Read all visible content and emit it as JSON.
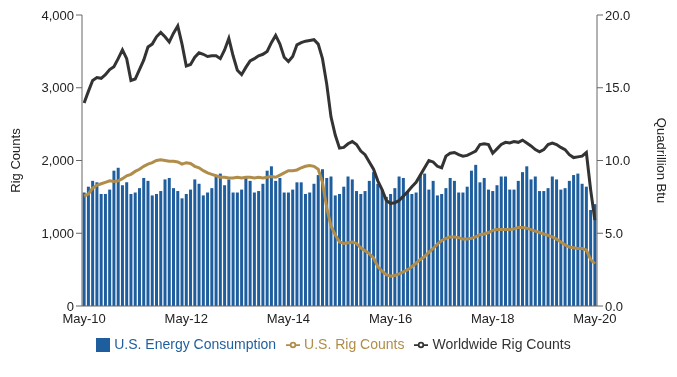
{
  "chart_data": {
    "type": "bar",
    "y_label": "Rig Counts",
    "y2_label": "Quadrillion Btu",
    "legend": "bottom",
    "grid": false,
    "categories": [
      "May-10",
      null,
      null,
      null,
      null,
      null,
      null,
      null,
      null,
      null,
      null,
      null,
      null,
      null,
      null,
      null,
      null,
      null,
      null,
      null,
      null,
      null,
      null,
      null,
      "May-12",
      null,
      null,
      null,
      null,
      null,
      null,
      null,
      null,
      null,
      null,
      null,
      null,
      null,
      null,
      null,
      null,
      null,
      null,
      null,
      null,
      null,
      null,
      null,
      "May-14",
      null,
      null,
      null,
      null,
      null,
      null,
      null,
      null,
      null,
      null,
      null,
      null,
      null,
      null,
      null,
      null,
      null,
      null,
      null,
      null,
      null,
      null,
      null,
      "May-16",
      null,
      null,
      null,
      null,
      null,
      null,
      null,
      null,
      null,
      null,
      null,
      null,
      null,
      null,
      null,
      null,
      null,
      null,
      null,
      null,
      null,
      null,
      null,
      "May-18",
      null,
      null,
      null,
      null,
      null,
      null,
      null,
      null,
      null,
      null,
      null,
      null,
      null,
      null,
      null,
      null,
      null,
      null,
      null,
      null,
      null,
      null,
      null,
      "May-20"
    ],
    "ylim": [
      0,
      4000
    ],
    "yticks": [
      {
        "value": 0,
        "label": "0"
      },
      {
        "value": 1000,
        "label": "1,000"
      },
      {
        "value": 2000,
        "label": "2,000"
      },
      {
        "value": 3000,
        "label": "3,000"
      },
      {
        "value": 4000,
        "label": "4,000"
      }
    ],
    "y2lim": [
      0,
      20
    ],
    "y2ticks": [
      {
        "value": 0,
        "label": "0.0"
      },
      {
        "value": 5,
        "label": "5.0"
      },
      {
        "value": 10,
        "label": "10.0"
      },
      {
        "value": 15,
        "label": "15.0"
      },
      {
        "value": 20,
        "label": "20.0"
      }
    ],
    "series": [
      {
        "name": "U.S. Energy Consumption",
        "type": "bar",
        "axis": "y2",
        "color": "#1f5e9e",
        "values": [
          7.8,
          8.2,
          8.6,
          8.5,
          7.7,
          7.7,
          8.0,
          9.3,
          9.5,
          8.3,
          8.5,
          7.7,
          7.8,
          8.1,
          8.8,
          8.6,
          7.6,
          7.7,
          7.9,
          8.7,
          8.8,
          8.1,
          7.9,
          7.4,
          7.7,
          8.0,
          8.7,
          8.4,
          7.6,
          7.8,
          8.1,
          8.9,
          9.1,
          8.3,
          8.7,
          7.8,
          7.8,
          8.0,
          8.8,
          8.6,
          7.8,
          7.9,
          8.4,
          9.3,
          9.6,
          8.6,
          8.8,
          7.8,
          7.8,
          8.0,
          8.5,
          8.5,
          7.7,
          7.8,
          8.4,
          9.0,
          9.4,
          8.8,
          8.9,
          7.6,
          7.7,
          8.2,
          8.9,
          8.7,
          7.9,
          7.7,
          7.9,
          8.6,
          9.2,
          8.4,
          8.0,
          7.5,
          7.7,
          8.1,
          8.9,
          8.8,
          7.9,
          7.7,
          7.8,
          9.0,
          9.1,
          8.0,
          8.6,
          7.6,
          7.7,
          8.1,
          8.8,
          8.6,
          7.8,
          7.8,
          8.2,
          9.3,
          9.7,
          8.5,
          8.8,
          8.0,
          7.9,
          8.3,
          8.9,
          8.9,
          8.0,
          8.0,
          8.6,
          9.2,
          9.6,
          8.7,
          8.9,
          7.9,
          7.9,
          8.1,
          8.9,
          8.7,
          8.0,
          8.1,
          8.6,
          9.0,
          9.1,
          8.4,
          8.2,
          6.6,
          7.0
        ]
      },
      {
        "name": "U.S. Rig Counts",
        "type": "line",
        "axis": "y",
        "color": "#b08d4a",
        "values": [
          1510,
          1540,
          1620,
          1660,
          1680,
          1700,
          1720,
          1710,
          1720,
          1750,
          1790,
          1810,
          1850,
          1880,
          1920,
          1950,
          1970,
          2000,
          2010,
          2000,
          1990,
          1990,
          1980,
          1950,
          1970,
          1960,
          1920,
          1900,
          1860,
          1830,
          1810,
          1790,
          1770,
          1770,
          1760,
          1760,
          1770,
          1760,
          1770,
          1770,
          1760,
          1770,
          1760,
          1770,
          1780,
          1770,
          1800,
          1830,
          1860,
          1860,
          1870,
          1900,
          1920,
          1930,
          1920,
          1880,
          1700,
          1350,
          1100,
          980,
          880,
          860,
          870,
          880,
          860,
          800,
          760,
          720,
          660,
          540,
          480,
          430,
          410,
          420,
          440,
          470,
          500,
          540,
          590,
          640,
          680,
          740,
          790,
          850,
          900,
          930,
          950,
          950,
          940,
          920,
          920,
          930,
          950,
          980,
          990,
          1010,
          1040,
          1050,
          1050,
          1050,
          1050,
          1060,
          1080,
          1080,
          1070,
          1050,
          1030,
          1010,
          990,
          970,
          950,
          920,
          880,
          840,
          810,
          800,
          790,
          790,
          770,
          640,
          580
        ]
      },
      {
        "name": "Worldwide Rig Counts",
        "type": "line",
        "axis": "y",
        "color": "#333333",
        "values": [
          2790,
          2950,
          3100,
          3140,
          3130,
          3180,
          3250,
          3290,
          3400,
          3520,
          3400,
          3100,
          3120,
          3250,
          3380,
          3560,
          3600,
          3700,
          3760,
          3700,
          3630,
          3750,
          3850,
          3600,
          3300,
          3320,
          3420,
          3480,
          3460,
          3430,
          3440,
          3440,
          3400,
          3520,
          3680,
          3440,
          3240,
          3180,
          3280,
          3370,
          3400,
          3440,
          3460,
          3500,
          3620,
          3720,
          3600,
          3420,
          3360,
          3430,
          3590,
          3620,
          3640,
          3650,
          3660,
          3600,
          3400,
          3050,
          2600,
          2350,
          2170,
          2180,
          2230,
          2260,
          2220,
          2130,
          2080,
          1980,
          1880,
          1720,
          1600,
          1450,
          1410,
          1420,
          1450,
          1510,
          1570,
          1640,
          1700,
          1800,
          1900,
          2000,
          1980,
          1920,
          1900,
          2060,
          2100,
          2110,
          2080,
          2060,
          2070,
          2100,
          2130,
          2220,
          2230,
          2220,
          2100,
          2160,
          2220,
          2250,
          2240,
          2260,
          2250,
          2280,
          2240,
          2200,
          2150,
          2120,
          2150,
          2220,
          2240,
          2220,
          2180,
          2150,
          2080,
          2040,
          2050,
          2060,
          2110,
          1600,
          1180
        ]
      }
    ]
  }
}
